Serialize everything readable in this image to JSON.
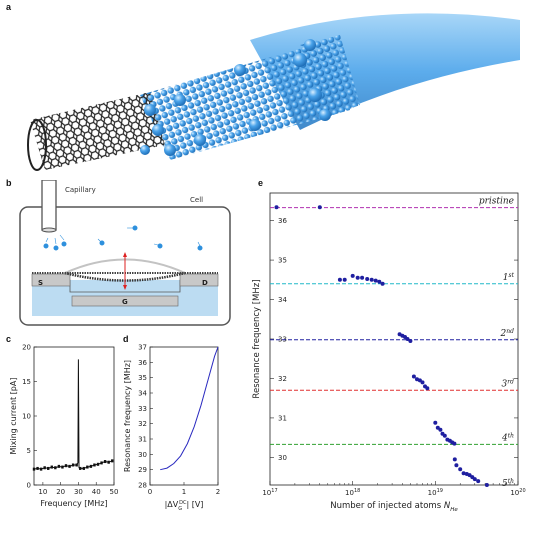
{
  "panels": {
    "a": "a",
    "b": "b",
    "c": "c",
    "d": "d",
    "e": "e"
  },
  "schematic": {
    "capillary_label": "Capillary",
    "cell_label": "Cell",
    "source_label": "S",
    "drain_label": "D",
    "gate_label": "G"
  },
  "colors": {
    "nanotube": "#2b2b2b",
    "atoms": "#3f9de8",
    "atoms_light": "#8cc8f4",
    "data_points": "#1f1fa0",
    "line_pristine": "#b030b0",
    "line_1": "#20b8c8",
    "line_2": "#2020a0",
    "line_3": "#e03030",
    "line_4": "#30a030",
    "line_5": "#2020a0"
  },
  "chart_data": [
    {
      "id": "c",
      "type": "line",
      "xlabel": "Frequency [MHz]",
      "ylabel": "Mixing current [pA]",
      "xlim": [
        5,
        50
      ],
      "ylim": [
        0,
        20
      ],
      "xticks": [
        "10",
        "20",
        "30",
        "40",
        "50"
      ],
      "yticks": [
        "0",
        "5",
        "10",
        "15",
        "20"
      ],
      "x": [
        5,
        7,
        9,
        11,
        13,
        15,
        17,
        19,
        21,
        23,
        25,
        27,
        29,
        29.7,
        30,
        30.3,
        31,
        33,
        35,
        37,
        39,
        41,
        43,
        45,
        47,
        49
      ],
      "y": [
        2.3,
        2.4,
        2.3,
        2.5,
        2.4,
        2.6,
        2.5,
        2.7,
        2.6,
        2.8,
        2.7,
        2.9,
        2.9,
        3.2,
        18.2,
        2.5,
        2.4,
        2.4,
        2.6,
        2.7,
        2.9,
        3.0,
        3.2,
        3.4,
        3.3,
        3.5
      ]
    },
    {
      "id": "d",
      "type": "line",
      "xlabel": "|ΔV_G^DC| [V]",
      "ylabel": "Resonance frequency [MHz]",
      "xlim": [
        0,
        2
      ],
      "ylim": [
        28,
        37
      ],
      "xticks": [
        "0",
        "1",
        "2"
      ],
      "yticks": [
        "28",
        "29",
        "30",
        "31",
        "32",
        "33",
        "34",
        "35",
        "36",
        "37"
      ],
      "x": [
        0.3,
        0.5,
        0.7,
        0.9,
        1.1,
        1.3,
        1.5,
        1.7,
        1.9,
        2.0
      ],
      "y": [
        29.0,
        29.1,
        29.4,
        29.9,
        30.7,
        31.8,
        33.2,
        34.8,
        36.4,
        37.0
      ]
    },
    {
      "id": "e",
      "type": "scatter",
      "xlabel": "Number of injected atoms N_He",
      "ylabel": "Resonance frequency [MHz]",
      "xscale": "log",
      "xlim": [
        1e+17,
        1e+20
      ],
      "ylim": [
        29.3,
        36.7
      ],
      "xticks": [
        "10^17",
        "10^18",
        "10^19",
        "10^20"
      ],
      "yticks": [
        "30",
        "31",
        "32",
        "33",
        "34",
        "35",
        "36"
      ],
      "reference_lines": [
        {
          "label": "pristine",
          "y": 36.33,
          "color": "#b030b0"
        },
        {
          "label": "1st",
          "y": 34.4,
          "color": "#20b8c8"
        },
        {
          "label": "2nd",
          "y": 32.98,
          "color": "#2020a0"
        },
        {
          "label": "3rd",
          "y": 31.7,
          "color": "#e03030"
        },
        {
          "label": "4th",
          "y": 30.33,
          "color": "#30a030"
        }
      ],
      "series": [
        {
          "x": [
            1.2e+17,
            4e+17,
            7e+17,
            8e+17,
            1e+18,
            1.15e+18,
            1.3e+18,
            1.5e+18,
            1.7e+18,
            1.9e+18,
            2.1e+18,
            2.3e+18,
            3.7e+18,
            4e+18,
            4.3e+18,
            4.6e+18,
            5e+18,
            5.5e+18,
            6e+18,
            6.5e+18,
            7e+18,
            7.5e+18,
            8e+18,
            1e+19,
            1.07e+19,
            1.15e+19,
            1.22e+19,
            1.3e+19,
            1.4e+19,
            1.5e+19,
            1.6e+19,
            1.7e+19,
            1.72e+19,
            1.8e+19,
            2e+19,
            2.2e+19,
            2.4e+19,
            2.6e+19,
            2.8e+19,
            3e+19,
            3.3e+19,
            4.2e+19
          ],
          "y": [
            36.34,
            36.34,
            34.5,
            34.5,
            34.6,
            34.55,
            34.55,
            34.52,
            34.5,
            34.48,
            34.45,
            34.4,
            33.12,
            33.08,
            33.05,
            33.0,
            32.95,
            32.05,
            31.98,
            31.95,
            31.9,
            31.8,
            31.75,
            30.88,
            30.75,
            30.7,
            30.6,
            30.55,
            30.45,
            30.42,
            30.38,
            30.35,
            29.95,
            29.8,
            29.7,
            29.6,
            29.58,
            29.55,
            29.5,
            29.45,
            29.4,
            29.3
          ]
        }
      ],
      "annotations": [
        {
          "text": "pristine",
          "y": 36.33
        },
        {
          "text": "1st",
          "y": 34.4
        },
        {
          "text": "2nd",
          "y": 32.98
        },
        {
          "text": "3rd",
          "y": 31.7
        },
        {
          "text": "4th",
          "y": 30.33
        },
        {
          "text": "5th",
          "y": 29.35
        }
      ]
    }
  ]
}
